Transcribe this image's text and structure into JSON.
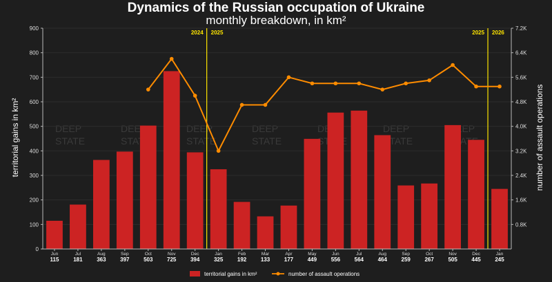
{
  "chart_data": {
    "type": "bar",
    "title": "Dynamics of the Russian occupation of Ukraine",
    "subtitle": "monthly breakdown, in km²",
    "ylabel_left": "territorial gains in km²",
    "ylabel_right": "number of assault operations",
    "ylim_left": [
      0,
      900
    ],
    "yticks_left": [
      "0",
      "100",
      "200",
      "300",
      "400",
      "500",
      "600",
      "700",
      "800",
      "900"
    ],
    "ylim_right": [
      0,
      7200
    ],
    "yticks_right": [
      "0.8K",
      "1.6K",
      "2.4K",
      "3.2K",
      "4.0K",
      "4.8K",
      "5.6K",
      "6.4K",
      "7.2K"
    ],
    "categories": [
      "Jun",
      "Jul",
      "Aug",
      "Sep",
      "Oct",
      "Nov",
      "Dec",
      "Jan",
      "Feb",
      "Mar",
      "Apr",
      "May",
      "Jun",
      "Jul",
      "Aug",
      "Sep",
      "Oct",
      "Nov",
      "Dec",
      "Jan"
    ],
    "series": [
      {
        "name": "territorial gains in km²",
        "kind": "bar",
        "color": "#cc2323",
        "values": [
          115,
          181,
          363,
          397,
          503,
          725,
          394,
          325,
          192,
          133,
          177,
          449,
          556,
          564,
          464,
          259,
          267,
          505,
          445,
          245
        ]
      },
      {
        "name": "number of assault operations",
        "kind": "line",
        "color": "#ff8c00",
        "values": [
          null,
          null,
          null,
          null,
          5200,
          6200,
          5000,
          3200,
          4700,
          4700,
          5600,
          5400,
          5400,
          5400,
          5200,
          5400,
          5500,
          6000,
          5300,
          5300
        ]
      }
    ],
    "year_dividers": [
      {
        "after_index": 6,
        "left_label": "2024",
        "right_label": "2025"
      },
      {
        "after_index": 18,
        "left_label": "2025",
        "right_label": "2026"
      }
    ],
    "watermark": [
      "DEEP",
      "STATE"
    ],
    "grid": true,
    "legend_position": "bottom-center"
  },
  "colors": {
    "background": "#1e1e1e",
    "bar": "#cc2323",
    "line": "#ff8c00",
    "divider": "#ffe600",
    "grid": "#2c2c2c"
  }
}
